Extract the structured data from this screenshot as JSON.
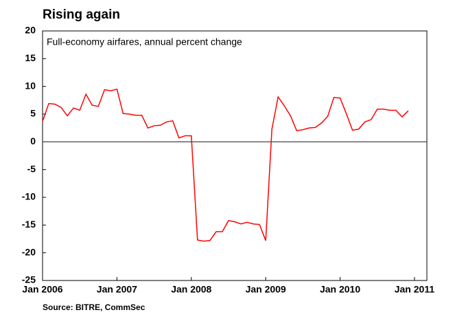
{
  "chart_data": {
    "type": "line",
    "title": "Rising again",
    "subtitle": "Full-economy airfares, annual percent change",
    "source": "Source: BITRE, CommSec",
    "x": [
      "2006-01",
      "2006-02",
      "2006-03",
      "2006-04",
      "2006-05",
      "2006-06",
      "2006-07",
      "2006-08",
      "2006-09",
      "2006-10",
      "2006-11",
      "2006-12",
      "2007-01",
      "2007-02",
      "2007-03",
      "2007-04",
      "2007-05",
      "2007-06",
      "2007-07",
      "2007-08",
      "2007-09",
      "2007-10",
      "2007-11",
      "2007-12",
      "2008-01",
      "2008-02",
      "2008-03",
      "2008-04",
      "2008-05",
      "2008-06",
      "2008-07",
      "2008-08",
      "2008-09",
      "2008-10",
      "2008-11",
      "2008-12",
      "2009-01",
      "2009-02",
      "2009-03",
      "2009-04",
      "2009-05",
      "2009-06",
      "2009-07",
      "2009-08",
      "2009-09",
      "2009-10",
      "2009-11",
      "2009-12",
      "2010-01",
      "2010-02",
      "2010-03",
      "2010-04",
      "2010-05",
      "2010-06",
      "2010-07",
      "2010-08",
      "2010-09",
      "2010-10",
      "2010-11",
      "2010-12"
    ],
    "series": [
      {
        "color": "#ff0000",
        "values": [
          3.7,
          6.9,
          6.8,
          6.2,
          4.7,
          6.1,
          5.7,
          8.6,
          6.6,
          6.4,
          9.4,
          9.2,
          9.5,
          5.1,
          5.0,
          4.8,
          4.8,
          2.5,
          2.9,
          3.0,
          3.6,
          3.8,
          0.7,
          1.1,
          1.1,
          -17.7,
          -17.9,
          -17.8,
          -16.2,
          -16.2,
          -14.2,
          -14.4,
          -14.8,
          -14.5,
          -14.8,
          -14.9,
          -17.8,
          2.3,
          8.1,
          6.5,
          4.7,
          2.0,
          2.2,
          2.5,
          2.6,
          3.4,
          4.6,
          8.0,
          7.9,
          5.1,
          2.1,
          2.3,
          3.6,
          4.0,
          5.9,
          5.9,
          5.7,
          5.7,
          4.5,
          5.6
        ]
      }
    ],
    "xlim": [
      "2006-01",
      "2011-03"
    ],
    "xticks": [
      {
        "value": "2006-01",
        "label": "Jan 2006"
      },
      {
        "value": "2007-01",
        "label": "Jan 2007"
      },
      {
        "value": "2008-01",
        "label": "Jan 2008"
      },
      {
        "value": "2009-01",
        "label": "Jan 2009"
      },
      {
        "value": "2010-01",
        "label": "Jan 2010"
      },
      {
        "value": "2011-01",
        "label": "Jan 2011"
      }
    ],
    "ylim": [
      -25,
      20
    ],
    "yticks": [
      20,
      15,
      10,
      5,
      0,
      -5,
      -10,
      -15,
      -20,
      -25
    ],
    "zero_line": true,
    "grid": false
  }
}
